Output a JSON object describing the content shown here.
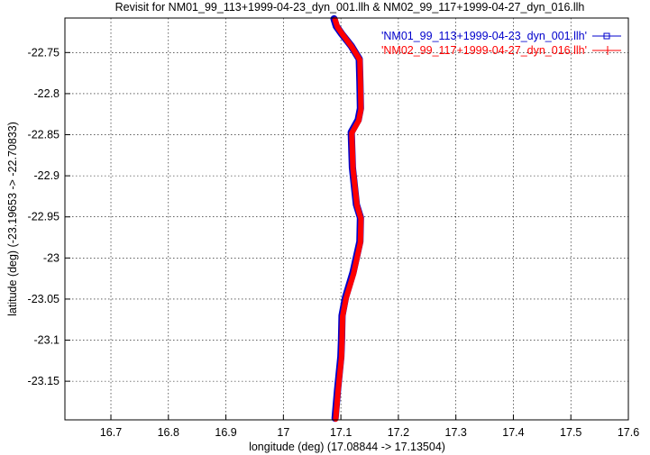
{
  "chart_data": {
    "type": "line",
    "title": "Revisit for NM01_99_113+1999-04-23_dyn_001.llh & NM02_99_117+1999-04-27_dyn_016.llh",
    "xlabel": "longitude (deg) (17.08844 -> 17.13504)",
    "ylabel": "latitude (deg) (-23.19653 -> -22.70833)",
    "xlim": [
      16.62,
      17.6
    ],
    "ylim": [
      -23.197,
      -22.708
    ],
    "xticks": [
      16.7,
      16.8,
      16.9,
      17,
      17.1,
      17.2,
      17.3,
      17.4,
      17.5,
      17.6
    ],
    "xtick_labels": [
      "16.7",
      "16.8",
      "16.9",
      "17",
      "17.1",
      "17.2",
      "17.3",
      "17.4",
      "17.5",
      "17.6"
    ],
    "yticks": [
      -22.75,
      -22.8,
      -22.85,
      -22.9,
      -22.95,
      -23,
      -23.05,
      -23.1,
      -23.15
    ],
    "ytick_labels": [
      "-22.75",
      "-22.8",
      "-22.85",
      "-22.9",
      "-22.95",
      "-23",
      "-23.05",
      "-23.1",
      "-23.15"
    ],
    "grid": true,
    "legend_position": "top-right",
    "series": [
      {
        "name": "'NM01_99_113+1999-04-23_dyn_001.llh'",
        "color": "#0000cc",
        "marker": "square",
        "x": [
          17.088,
          17.092,
          17.101,
          17.118,
          17.132,
          17.133,
          17.134,
          17.13,
          17.118,
          17.12,
          17.127,
          17.134,
          17.133,
          17.121,
          17.108,
          17.102,
          17.101,
          17.1,
          17.094,
          17.09
        ],
        "y": [
          -22.709,
          -22.718,
          -22.727,
          -22.742,
          -22.758,
          -22.785,
          -22.818,
          -22.832,
          -22.847,
          -22.89,
          -22.935,
          -22.951,
          -22.98,
          -23.018,
          -23.048,
          -23.07,
          -23.1,
          -23.12,
          -23.162,
          -23.195
        ]
      },
      {
        "name": "'NM02_99_117+1999-04-27_dyn_016.llh'",
        "color": "#ff0000",
        "marker": "plus",
        "x": [
          17.09,
          17.094,
          17.103,
          17.119,
          17.133,
          17.134,
          17.135,
          17.131,
          17.119,
          17.121,
          17.128,
          17.135,
          17.134,
          17.122,
          17.109,
          17.103,
          17.102,
          17.101,
          17.095,
          17.091
        ],
        "y": [
          -22.71,
          -22.719,
          -22.728,
          -22.743,
          -22.759,
          -22.786,
          -22.819,
          -22.833,
          -22.848,
          -22.891,
          -22.936,
          -22.952,
          -22.981,
          -23.019,
          -23.049,
          -23.071,
          -23.101,
          -23.121,
          -23.163,
          -23.196
        ]
      }
    ]
  }
}
